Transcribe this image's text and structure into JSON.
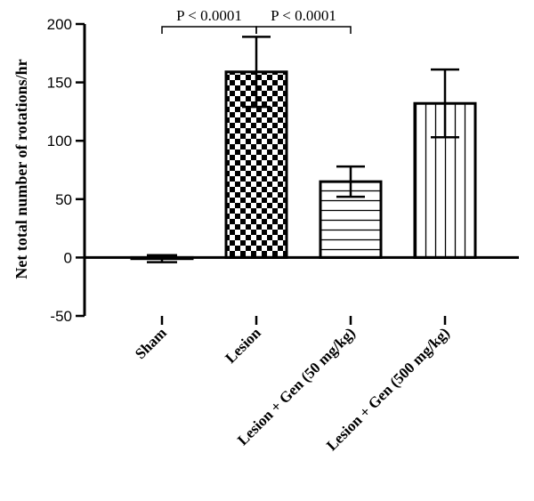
{
  "chart_data": {
    "type": "bar",
    "title": "",
    "ylabel": "Net total number of  rotations/hr",
    "xlabel": "",
    "ylim": [
      -50,
      200
    ],
    "yticks": [
      -50,
      0,
      50,
      100,
      150,
      200
    ],
    "grid": false,
    "categories": [
      "Sham",
      "Lesion",
      "Lesion + Gen (50 mg/kg)",
      "Lesion + Gen (500 mg/kg)"
    ],
    "values": [
      -1,
      159,
      65,
      132
    ],
    "error": [
      3,
      30,
      13,
      29
    ],
    "patterns": [
      "none",
      "checkerboard",
      "horizontal-lines",
      "vertical-lines"
    ],
    "significance": [
      {
        "from": 0,
        "to": 1,
        "label": "P < 0.0001"
      },
      {
        "from": 1,
        "to": 2,
        "label": "P < 0.0001"
      }
    ],
    "colors": {
      "bar_stroke": "#000000",
      "bar_fill": "#ffffff",
      "pattern": "#000000"
    }
  }
}
